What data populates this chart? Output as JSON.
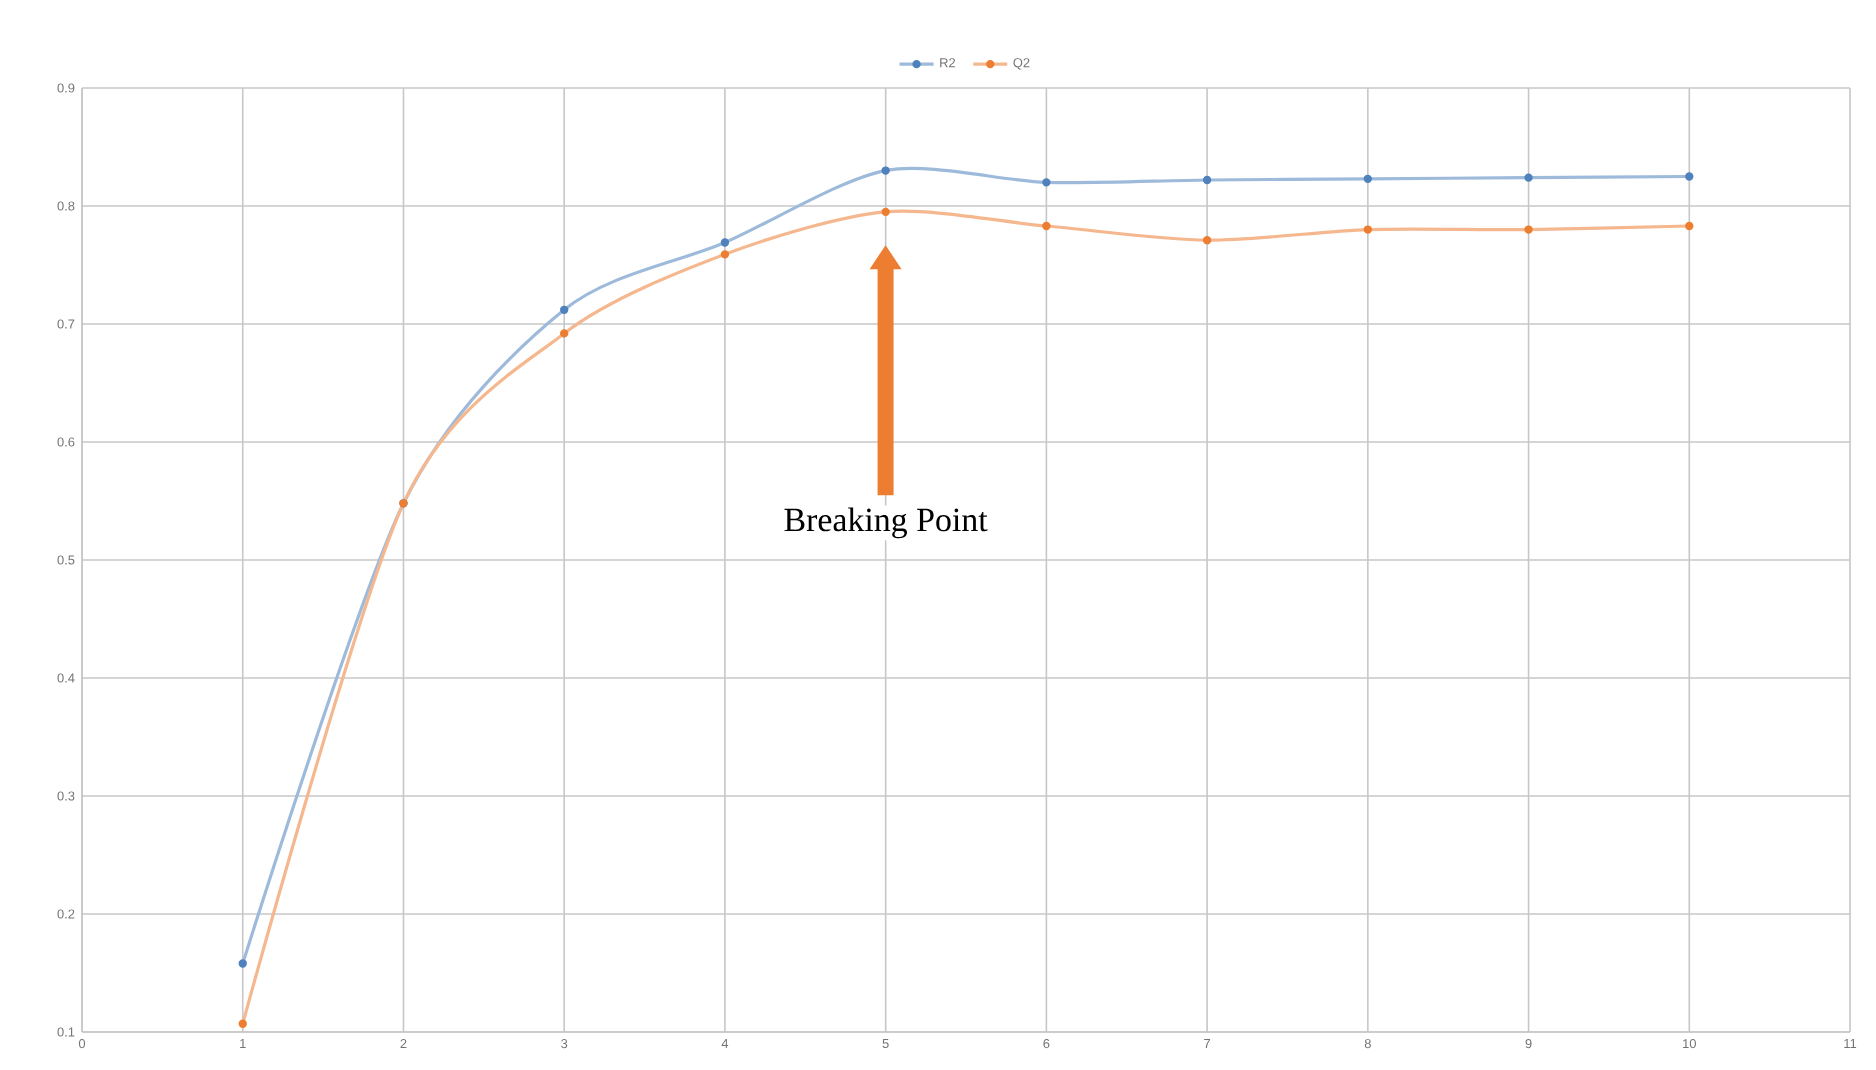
{
  "chart_data": {
    "type": "line",
    "x": [
      1,
      2,
      3,
      4,
      5,
      6,
      7,
      8,
      9,
      10
    ],
    "series": [
      {
        "name": "R2",
        "color": "#4f81bd",
        "values": [
          0.158,
          0.548,
          0.712,
          0.769,
          0.83,
          0.82,
          0.822,
          0.823,
          0.824,
          0.825
        ]
      },
      {
        "name": "Q2",
        "color": "#ed7d31",
        "values": [
          0.107,
          0.548,
          0.692,
          0.759,
          0.795,
          0.783,
          0.771,
          0.78,
          0.78,
          0.783
        ]
      }
    ],
    "xlim": [
      0,
      11
    ],
    "xticks": [
      0,
      1,
      2,
      3,
      4,
      5,
      6,
      7,
      8,
      9,
      10,
      11
    ],
    "ylim": [
      0.1,
      0.9
    ],
    "yticks": [
      0.1,
      0.2,
      0.3,
      0.4,
      0.5,
      0.6,
      0.7,
      0.8,
      0.9
    ],
    "annotations": [
      "Breaking Point"
    ],
    "grid": true,
    "legend": "top",
    "marker": "circle",
    "line_style": "solid"
  }
}
